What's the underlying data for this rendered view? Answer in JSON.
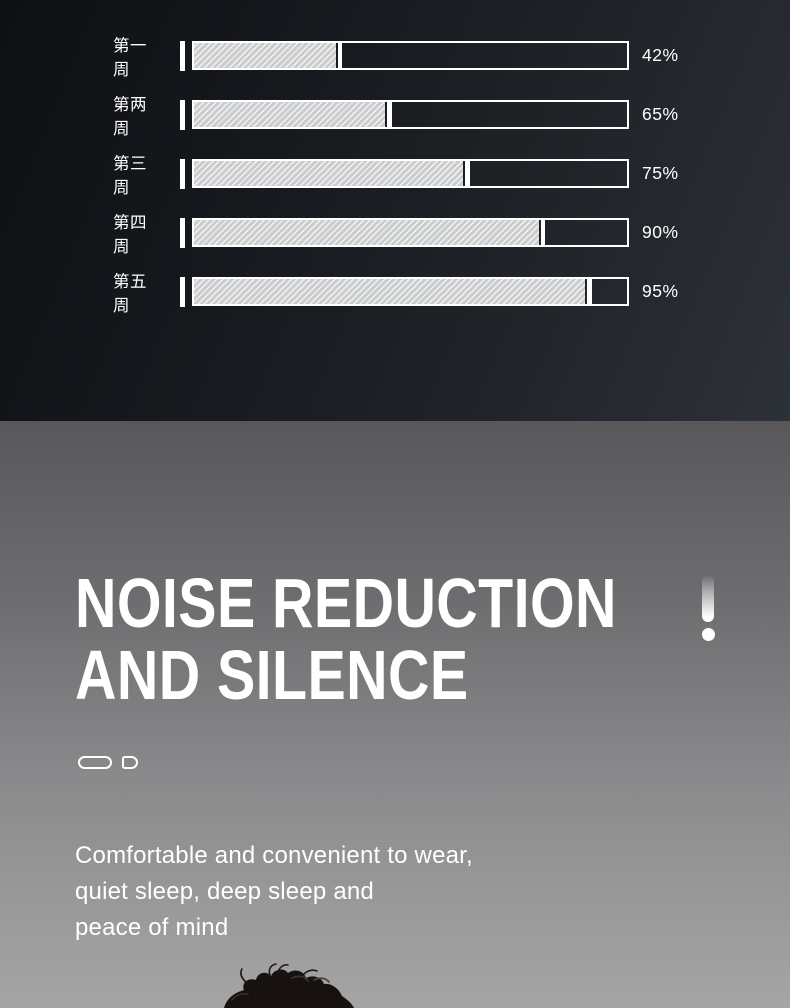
{
  "colors": {
    "dark_bg_left": "#0e1014",
    "dark_bg_right": "#2d3138",
    "gray_bg_top": "#58585b",
    "gray_bg_bottom": "#a5a5a6",
    "bar_border": "#ffffff",
    "bar_fill_base": "#cbccce",
    "bar_fill_stripe": "#ffffff",
    "text": "#ffffff",
    "hair": "#17120f"
  },
  "chart_data": {
    "type": "bar",
    "orientation": "horizontal",
    "title": "",
    "categories": [
      "第一周",
      "第两周",
      "第三周",
      "第四周",
      "第五周"
    ],
    "values": [
      42,
      65,
      75,
      90,
      95
    ],
    "value_labels": [
      "42%",
      "65%",
      "75%",
      "90%",
      "95%"
    ],
    "unit": "%",
    "xlim": [
      0,
      100
    ],
    "grid": false,
    "legend": false,
    "bar_style": "white outlined track, diagonal-hatch fill with white end cap, white tick before each bar",
    "bar_fill_fractions": [
      0.327,
      0.442,
      0.622,
      0.796,
      0.904
    ]
  },
  "hero": {
    "title_line1": "NOISE REDUCTION",
    "title_line2": "AND SILENCE",
    "exclamation_mark": "!",
    "description_lines": [
      "Comfortable and convenient to wear,",
      "quiet sleep, deep sleep and",
      "peace of mind"
    ]
  },
  "icons": {
    "exclamation": "exclamation-icon",
    "earbud_left": "earbud-case-pill-icon",
    "earbud_right": "earbud-tip-icon",
    "photo": "sleeping-person-hair-photo"
  }
}
